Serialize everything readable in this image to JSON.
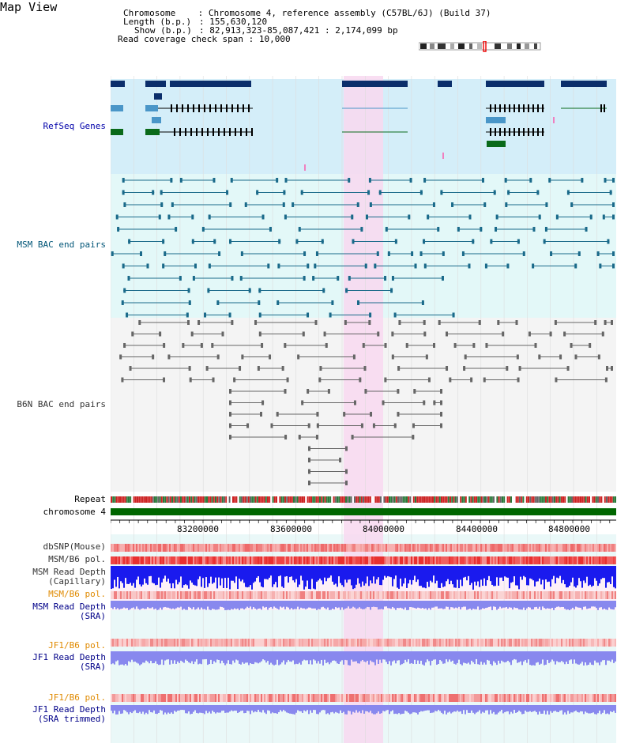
{
  "header": {
    "title": "Map View",
    "chromosome_label": "Chromosome",
    "chromosome_value": "Chromosome 4, reference assembly (C57BL/6J) (Build 37)",
    "length_label": "Length (b.p.)",
    "length_value": "155,630,120",
    "show_label": "Show (b.p.)",
    "show_value": "82,913,323-85,087,421 : 2,174,099 bp",
    "coverage_label": "Read coverage check span",
    "coverage_value": "10,000"
  },
  "tracks": {
    "refseq": "RefSeq Genes",
    "msm_bac": "MSM BAC end pairs",
    "b6n_bac": "B6N BAC end pairs",
    "repeat": "Repeat",
    "chromosome": "chromosome 4",
    "dbsnp": "dbSNP(Mouse)",
    "msm_b6_pol": "MSM/B6 pol.",
    "msm_read_depth_cap_1": "MSM Read Depth",
    "msm_read_depth_cap_2": "(Capillary)",
    "msm_b6_pol2": "MSM/B6 pol.",
    "msm_read_depth_sra_1": "MSM Read Depth",
    "msm_read_depth_sra_2": "(SRA)",
    "jf1_b6_pol": "JF1/B6 pol.",
    "jf1_read_depth_sra_1": "JF1 Read Depth",
    "jf1_read_depth_sra_2": "(SRA)",
    "jf1_b6_pol2": "JF1/B6 pol.",
    "jf1_read_depth_trim_1": "JF1 Read Depth",
    "jf1_read_depth_trim_2": "(SRA trimmed)"
  },
  "axis": {
    "ticks": [
      "83200000",
      "83600000",
      "84000000",
      "84400000",
      "84800000"
    ]
  },
  "colors": {
    "refseq_bg": "#d4eef9",
    "msm_bg": "#e3f8f8",
    "b6n_bg": "#f4f4f4",
    "highlight": "#f8d8f0",
    "chromosome_bar": "#006600",
    "gene_dark": "#0b2e6b",
    "gene_mid": "#4a96c8",
    "gene_green": "#0a6a1a",
    "msm_line": "#1a6a8a",
    "b6n_line": "#666666",
    "depth_blue": "#1a1aee",
    "depth_lavender": "#8888ee",
    "pol_red": "#ee4444"
  }
}
